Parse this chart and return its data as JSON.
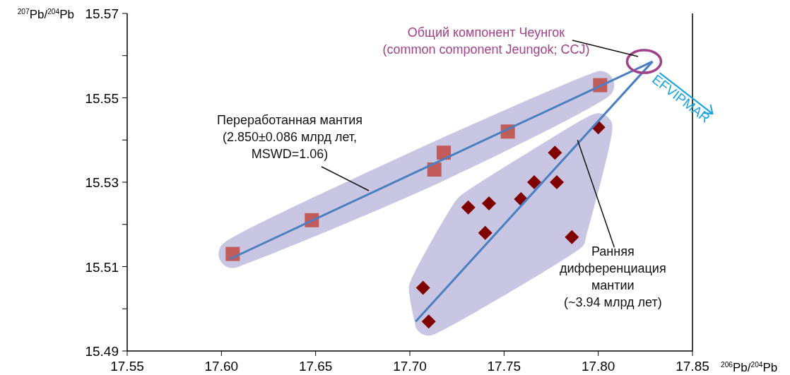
{
  "chart_data": {
    "type": "scatter",
    "xlabel": "$^{206}$Pb/$^{204}$Pb",
    "ylabel": "$^{207}$Pb/$^{204}$Pb",
    "xlim": [
      17.55,
      17.85
    ],
    "xticks": [
      17.55,
      {
        "value": 17.6,
        "label": "17.60"
      },
      17.65,
      {
        "value": 17.7,
        "label": "17.70"
      },
      17.75,
      {
        "value": 17.8,
        "label": "17.80"
      },
      17.85
    ],
    "ylim": [
      15.49,
      15.57
    ],
    "yticks": [
      15.49,
      {
        "value": 15.5,
        "label": null
      },
      15.51,
      {
        "value": 15.52,
        "label": null
      },
      15.53,
      {
        "value": 15.54,
        "label": null
      },
      15.55,
      {
        "value": 15.56,
        "label": null
      },
      15.57
    ],
    "grid": false,
    "series": [
      {
        "type": "line",
        "color": "#4a7fc0",
        "marker": "none",
        "x": [
          17.6045,
          17.8288
        ],
        "values": [
          15.5118,
          15.5586
        ]
      },
      {
        "type": "line",
        "color": "#4a7fc0",
        "marker": "none",
        "x": [
          17.7031,
          17.8288
        ],
        "values": [
          15.497,
          15.5586
        ]
      },
      {
        "color": "#c0504d",
        "marker": "square",
        "x": [
          17.606,
          17.648,
          17.713,
          17.718,
          17.752,
          17.801
        ],
        "values": [
          15.513,
          15.521,
          15.533,
          15.537,
          15.542,
          15.553
        ]
      },
      {
        "color": "#800000",
        "marker": "diamond",
        "x": [
          17.8,
          17.777,
          17.766,
          17.778,
          17.759,
          17.742,
          17.731,
          17.74,
          17.786,
          17.707,
          17.71
        ],
        "values": [
          15.543,
          15.537,
          15.53,
          15.53,
          15.526,
          15.525,
          15.524,
          15.518,
          15.517,
          15.505,
          15.497
        ]
      }
    ],
    "annotations": [
      {
        "text": "Общий компонент Чеунгок\n(common component Jeungok; CCJ)"
      },
      {
        "text": "EFVIPMAR"
      },
      {
        "text": "Переработанная мантия\n(2.850±0.086 млрд лет,\nMSWD=1.06)"
      },
      {
        "text": "Ранняя\nдифференциация\nмантии\n(~3.94 млрд лет)",
        "x": 17.789,
        "y": 15.54
      }
    ]
  }
}
